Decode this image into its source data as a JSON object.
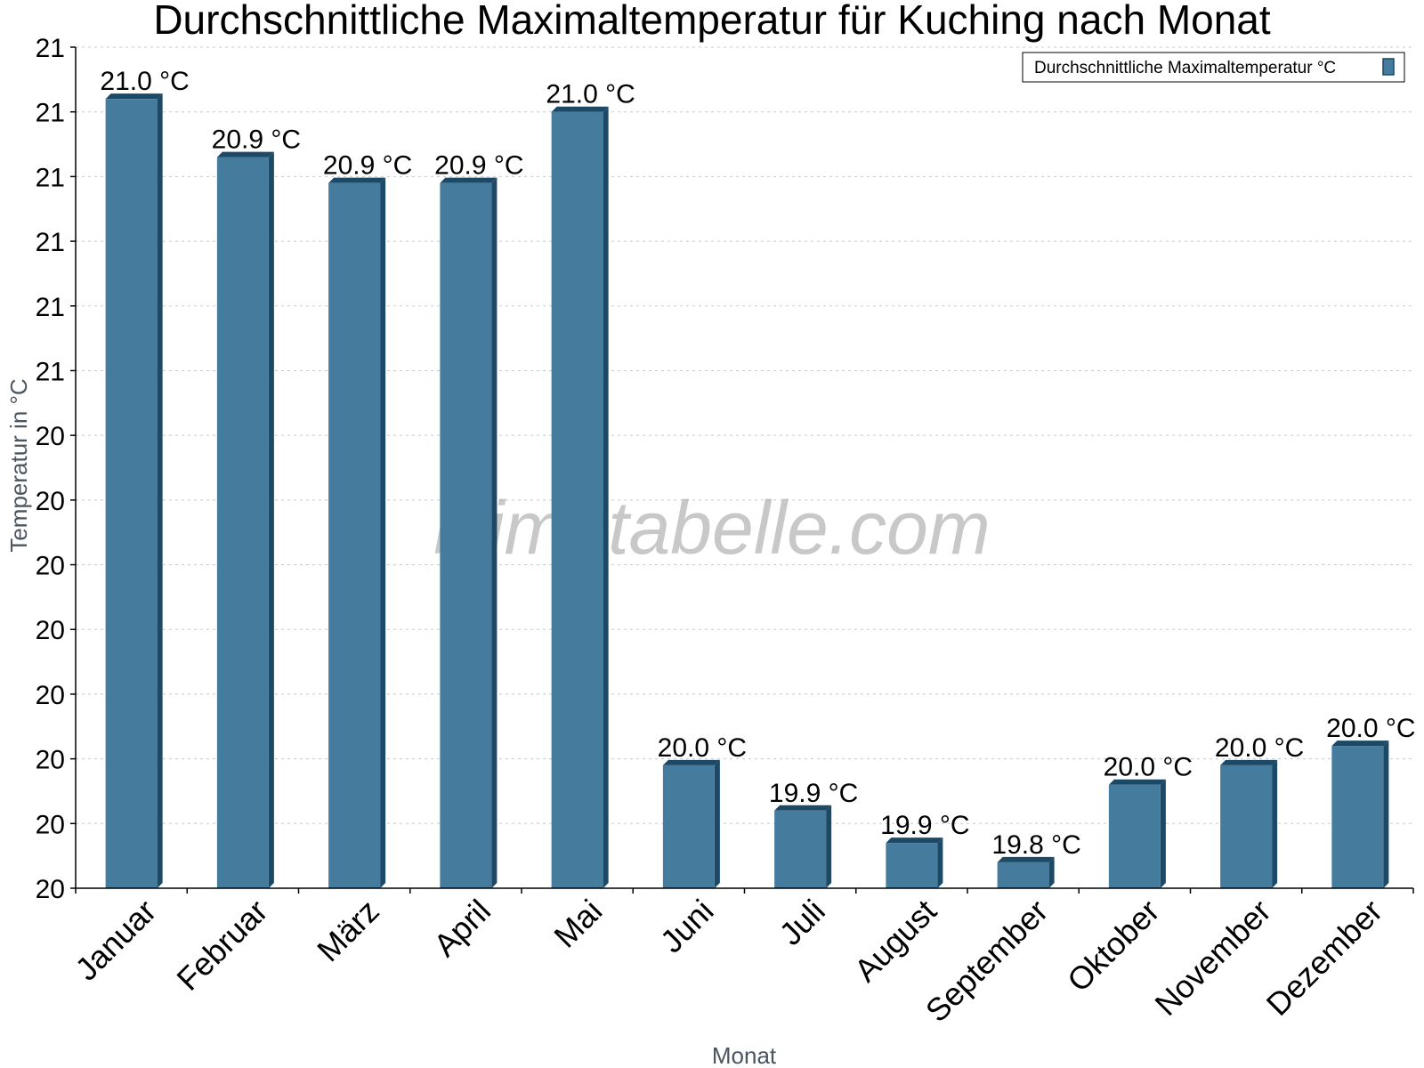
{
  "chart_data": {
    "type": "bar",
    "title": "Durchschnittliche Maximaltemperatur für Kuching nach Monat",
    "xlabel": "Monat",
    "ylabel": "Temperatur in °C",
    "categories": [
      "Januar",
      "Februar",
      "März",
      "April",
      "Mai",
      "Juni",
      "Juli",
      "August",
      "September",
      "Oktober",
      "November",
      "Dezember"
    ],
    "series": [
      {
        "name": "Durchschnittliche Maximaltemperatur °C",
        "values": [
          21.02,
          20.93,
          20.89,
          20.89,
          21.0,
          19.99,
          19.92,
          19.87,
          19.84,
          19.96,
          19.99,
          20.02
        ],
        "labels": [
          "21.0 °C",
          "20.9 °C",
          "20.9 °C",
          "20.9 °C",
          "21.0 °C",
          "20.0 °C",
          "19.9 °C",
          "19.9 °C",
          "19.8 °C",
          "20.0 °C",
          "20.0 °C",
          "20.0 °C"
        ]
      }
    ],
    "ylim": [
      19.8,
      21.1
    ],
    "yticks": [
      19.8,
      19.9,
      20.0,
      20.1,
      20.2,
      20.3,
      20.4,
      20.5,
      20.6,
      20.7,
      20.8,
      20.9,
      21.0,
      21.1
    ],
    "ytick_labels": [
      "20",
      "20",
      "20",
      "20",
      "20",
      "20",
      "20",
      "20",
      "21",
      "21",
      "21",
      "21",
      "21",
      "21"
    ],
    "grid": true,
    "legend_position": "top-right",
    "bar_color": "#457b9d",
    "bar_edge_color": "#1c4966",
    "watermark": "klimatabelle.com"
  }
}
